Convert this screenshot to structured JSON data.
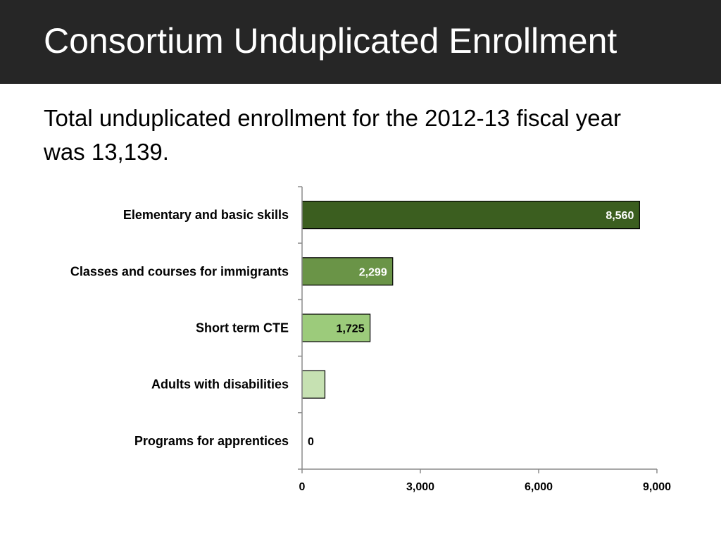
{
  "slide": {
    "title": "Consortium Unduplicated Enrollment",
    "subtitle": "Total unduplicated enrollment for the 2012-13 fiscal year was 13,139."
  },
  "colors": {
    "title_bar": "#262626",
    "axis": "#8c8c8c"
  },
  "chart_data": {
    "type": "bar",
    "orientation": "horizontal",
    "title": "",
    "xlabel": "",
    "ylabel": "",
    "categories": [
      "Elementary and basic skills",
      "Classes and courses for immigrants",
      "Short term CTE",
      "Adults with disabilities",
      "Programs for apprentices"
    ],
    "values": [
      8560,
      2299,
      1725,
      580,
      0
    ],
    "data_labels": [
      "8,560",
      "2,299",
      "1,725",
      "",
      "0"
    ],
    "bar_colors": [
      "#3b5e1f",
      "#6a9447",
      "#9ccb7b",
      "#c6e1b2",
      "#c6e1b2"
    ],
    "label_colors": [
      "#ffffff",
      "#ffffff",
      "#000000",
      "#000000",
      "#000000"
    ],
    "xlim": [
      0,
      9000
    ],
    "xticks": [
      0,
      3000,
      6000,
      9000
    ],
    "xtick_labels": [
      "0",
      "3,000",
      "6,000",
      "9,000"
    ],
    "grid": false,
    "legend": "none"
  }
}
